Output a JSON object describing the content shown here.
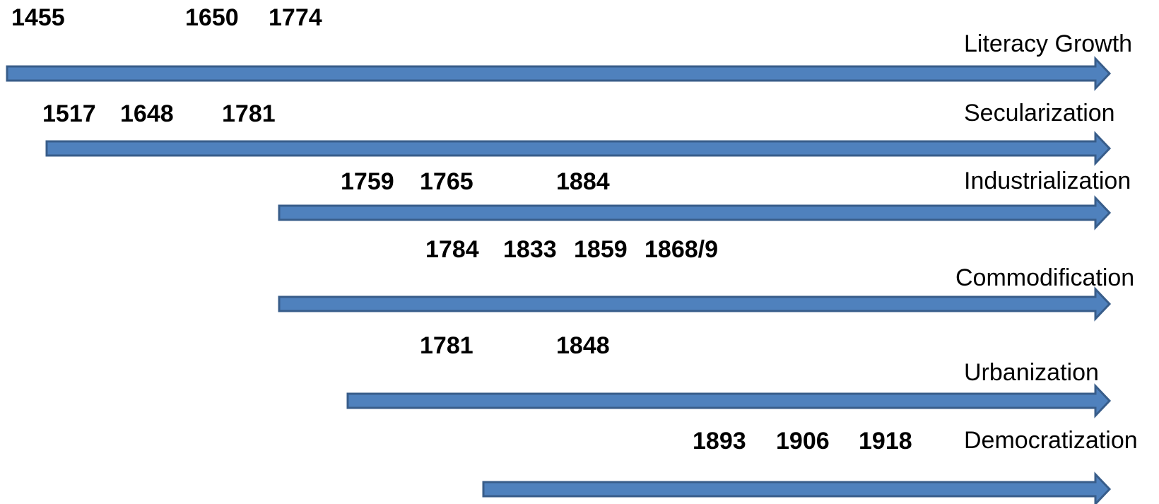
{
  "colors": {
    "arrow_fill": "#4f81bd",
    "arrow_stroke": "#385d8a"
  },
  "timelines": [
    {
      "label": "Literacy Growth",
      "years": [
        "1455",
        "1650",
        "1774"
      ]
    },
    {
      "label": "Secularization",
      "years": [
        "1517",
        "1648",
        "1781"
      ]
    },
    {
      "label": "Industrialization",
      "years": [
        "1759",
        "1765",
        "1884"
      ]
    },
    {
      "label": "Commodification",
      "years": [
        "1784",
        "1833",
        "1859",
        "1868/9"
      ]
    },
    {
      "label": "Urbanization",
      "years": [
        "1781",
        "1848"
      ]
    },
    {
      "label": "Democratization",
      "years": [
        "1893",
        "1906",
        "1918"
      ]
    }
  ]
}
